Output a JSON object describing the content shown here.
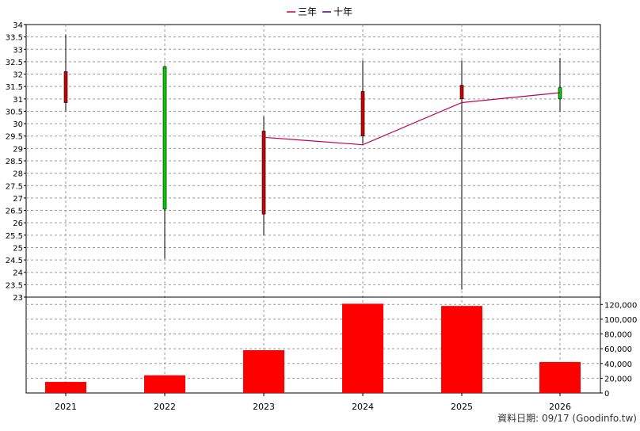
{
  "legend": [
    {
      "label": "三年",
      "color": "#c00050"
    },
    {
      "label": "十年",
      "color": "#4b0080"
    }
  ],
  "footer": "資料日期: 09/17  (Goodinfo.tw)",
  "chart_data": [
    {
      "type": "candlestick",
      "categories": [
        "2021",
        "2022",
        "2023",
        "2024",
        "2025",
        "2026"
      ],
      "ylim": [
        23,
        34
      ],
      "yticks": [
        "23",
        "23.5",
        "24",
        "24.5",
        "25",
        "25.5",
        "26",
        "26.5",
        "27",
        "27.5",
        "28",
        "28.5",
        "29",
        "29.5",
        "30",
        "30.5",
        "31",
        "31.5",
        "32",
        "32.5",
        "33",
        "33.5",
        "34"
      ],
      "candles": [
        {
          "x": "2021",
          "open": 32.1,
          "high": 33.6,
          "low": 30.5,
          "close": 30.85,
          "color": "#cc0000"
        },
        {
          "x": "2022",
          "open": 26.55,
          "high": 32.35,
          "low": 24.55,
          "close": 32.3,
          "color": "#00cc00"
        },
        {
          "x": "2023",
          "open": 29.7,
          "high": 30.3,
          "low": 25.5,
          "close": 26.35,
          "color": "#cc0000"
        },
        {
          "x": "2024",
          "open": 31.3,
          "high": 32.55,
          "low": 29.2,
          "close": 29.5,
          "color": "#cc0000"
        },
        {
          "x": "2025",
          "open": 31.55,
          "high": 32.55,
          "low": 23.3,
          "close": 31.0,
          "color": "#cc0000"
        },
        {
          "x": "2026",
          "open": 31.0,
          "high": 32.65,
          "low": 30.5,
          "close": 31.45,
          "color": "#00cc00"
        }
      ],
      "series": [
        {
          "name": "三年",
          "color": "#c00050",
          "x": [
            "2023",
            "2024",
            "2025",
            "2026"
          ],
          "values": [
            29.45,
            29.15,
            30.85,
            31.25
          ]
        }
      ],
      "grid": true
    },
    {
      "type": "bar",
      "categories": [
        "2021",
        "2022",
        "2023",
        "2024",
        "2025",
        "2026"
      ],
      "values": [
        15000,
        24000,
        58000,
        121000,
        118000,
        42000
      ],
      "color": "#ff0000",
      "ylim": [
        0,
        130000
      ],
      "yticks": [
        "0",
        "20,000",
        "40,000",
        "60,000",
        "80,000",
        "100,000",
        "120,000"
      ],
      "grid": true
    }
  ]
}
